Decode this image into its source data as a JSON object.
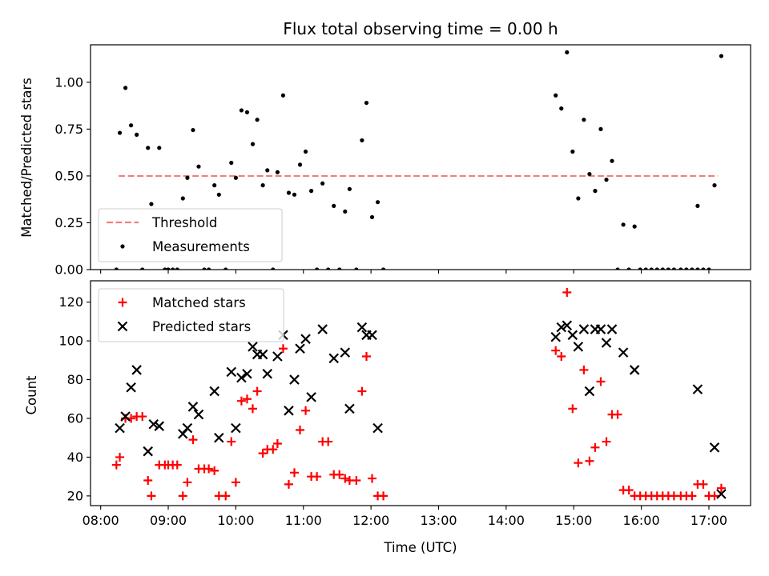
{
  "chart_data": {
    "title": "Flux total observing time = 0.00 h",
    "xlabel": "Time (UTC)",
    "x_ticks": [
      "08:00",
      "09:00",
      "10:00",
      "11:00",
      "12:00",
      "13:00",
      "14:00",
      "15:00",
      "16:00",
      "17:00"
    ],
    "xlim": [
      "07:51",
      "17:37"
    ],
    "panels": [
      {
        "type": "scatter",
        "ylabel": "Matched/Predicted stars",
        "ylim": [
          0,
          1.2
        ],
        "y_ticks": [
          "0.00",
          "0.25",
          "0.50",
          "0.75",
          "1.00"
        ],
        "legend_position": "lower-left",
        "series": [
          {
            "name": "Threshold",
            "kind": "dashed-line",
            "color": "#f08080",
            "x": [
              "08:16",
              "17:08"
            ],
            "y": [
              0.5,
              0.5
            ]
          },
          {
            "name": "Measurements",
            "kind": "dot",
            "color": "#000000",
            "points": [
              [
                "08:14",
                0.0
              ],
              [
                "08:17",
                0.73
              ],
              [
                "08:22",
                0.97
              ],
              [
                "08:27",
                0.77
              ],
              [
                "08:32",
                0.72
              ],
              [
                "08:37",
                0.0
              ],
              [
                "08:42",
                0.65
              ],
              [
                "08:45",
                0.35
              ],
              [
                "08:52",
                0.65
              ],
              [
                "08:57",
                0.0
              ],
              [
                "09:00",
                0.0
              ],
              [
                "09:04",
                0.0
              ],
              [
                "09:08",
                0.0
              ],
              [
                "09:13",
                0.38
              ],
              [
                "09:17",
                0.49
              ],
              [
                "09:22",
                0.745
              ],
              [
                "09:27",
                0.55
              ],
              [
                "09:32",
                0.0
              ],
              [
                "09:36",
                0.0
              ],
              [
                "09:41",
                0.45
              ],
              [
                "09:45",
                0.4
              ],
              [
                "09:51",
                0.0
              ],
              [
                "09:56",
                0.57
              ],
              [
                "10:00",
                0.49
              ],
              [
                "10:05",
                0.85
              ],
              [
                "10:10",
                0.84
              ],
              [
                "10:15",
                0.67
              ],
              [
                "10:19",
                0.8
              ],
              [
                "10:24",
                0.45
              ],
              [
                "10:28",
                0.53
              ],
              [
                "10:33",
                0.0
              ],
              [
                "10:37",
                0.52
              ],
              [
                "10:42",
                0.93
              ],
              [
                "10:47",
                0.41
              ],
              [
                "10:52",
                0.4
              ],
              [
                "10:57",
                0.56
              ],
              [
                "11:02",
                0.63
              ],
              [
                "11:07",
                0.42
              ],
              [
                "11:12",
                0.0
              ],
              [
                "11:17",
                0.46
              ],
              [
                "11:22",
                0.0
              ],
              [
                "11:27",
                0.34
              ],
              [
                "11:32",
                0.0
              ],
              [
                "11:37",
                0.31
              ],
              [
                "11:41",
                0.43
              ],
              [
                "11:47",
                0.0
              ],
              [
                "11:52",
                0.69
              ],
              [
                "11:56",
                0.89
              ],
              [
                "12:01",
                0.28
              ],
              [
                "12:06",
                0.36
              ],
              [
                "12:11",
                0.0
              ],
              [
                "14:44",
                0.93
              ],
              [
                "14:49",
                0.86
              ],
              [
                "14:54",
                1.16
              ],
              [
                "14:59",
                0.63
              ],
              [
                "15:04",
                0.38
              ],
              [
                "15:09",
                0.8
              ],
              [
                "15:14",
                0.51
              ],
              [
                "15:19",
                0.42
              ],
              [
                "15:24",
                0.75
              ],
              [
                "15:29",
                0.48
              ],
              [
                "15:34",
                0.58
              ],
              [
                "15:39",
                0.0
              ],
              [
                "15:44",
                0.24
              ],
              [
                "15:49",
                0.0
              ],
              [
                "15:54",
                0.23
              ],
              [
                "15:59",
                0.0
              ],
              [
                "16:04",
                0.0
              ],
              [
                "16:09",
                0.0
              ],
              [
                "16:14",
                0.0
              ],
              [
                "16:19",
                0.0
              ],
              [
                "16:24",
                0.0
              ],
              [
                "16:29",
                0.0
              ],
              [
                "16:35",
                0.0
              ],
              [
                "16:40",
                0.0
              ],
              [
                "16:45",
                0.0
              ],
              [
                "16:50",
                0.0
              ],
              [
                "16:55",
                0.0
              ],
              [
                "17:00",
                0.0
              ],
              [
                "16:50",
                0.34
              ],
              [
                "17:05",
                0.45
              ],
              [
                "17:11",
                1.14
              ]
            ]
          }
        ]
      },
      {
        "type": "scatter",
        "ylabel": "Count",
        "ylim": [
          15,
          131
        ],
        "y_ticks": [
          "20",
          "40",
          "60",
          "80",
          "100",
          "120"
        ],
        "legend_position": "top-left",
        "series": [
          {
            "name": "Matched stars",
            "marker": "plus",
            "color": "#ff0000",
            "points": [
              [
                "08:14",
                36
              ],
              [
                "08:17",
                40
              ],
              [
                "08:22",
                60
              ],
              [
                "08:27",
                60
              ],
              [
                "08:32",
                61
              ],
              [
                "08:37",
                61
              ],
              [
                "08:42",
                28
              ],
              [
                "08:45",
                20
              ],
              [
                "08:52",
                36
              ],
              [
                "08:57",
                36
              ],
              [
                "09:00",
                36
              ],
              [
                "09:04",
                36
              ],
              [
                "09:08",
                36
              ],
              [
                "09:13",
                20
              ],
              [
                "09:17",
                27
              ],
              [
                "09:22",
                49
              ],
              [
                "09:27",
                34
              ],
              [
                "09:32",
                34
              ],
              [
                "09:36",
                34
              ],
              [
                "09:41",
                33
              ],
              [
                "09:45",
                20
              ],
              [
                "09:51",
                20
              ],
              [
                "09:56",
                48
              ],
              [
                "10:00",
                27
              ],
              [
                "10:05",
                69
              ],
              [
                "10:10",
                70
              ],
              [
                "10:15",
                65
              ],
              [
                "10:19",
                74
              ],
              [
                "10:24",
                42
              ],
              [
                "10:28",
                44
              ],
              [
                "10:33",
                44
              ],
              [
                "10:37",
                47
              ],
              [
                "10:42",
                96
              ],
              [
                "10:47",
                26
              ],
              [
                "10:52",
                32
              ],
              [
                "10:57",
                54
              ],
              [
                "11:02",
                64
              ],
              [
                "11:07",
                30
              ],
              [
                "11:12",
                30
              ],
              [
                "11:17",
                48
              ],
              [
                "11:22",
                48
              ],
              [
                "11:27",
                31
              ],
              [
                "11:32",
                31
              ],
              [
                "11:37",
                29
              ],
              [
                "11:41",
                28
              ],
              [
                "11:47",
                28
              ],
              [
                "11:52",
                74
              ],
              [
                "11:56",
                92
              ],
              [
                "12:01",
                29
              ],
              [
                "12:06",
                20
              ],
              [
                "12:11",
                20
              ],
              [
                "14:44",
                95
              ],
              [
                "14:49",
                92
              ],
              [
                "14:54",
                125
              ],
              [
                "14:59",
                65
              ],
              [
                "15:04",
                37
              ],
              [
                "15:09",
                85
              ],
              [
                "15:14",
                38
              ],
              [
                "15:19",
                45
              ],
              [
                "15:24",
                79
              ],
              [
                "15:29",
                48
              ],
              [
                "15:34",
                62
              ],
              [
                "15:39",
                62
              ],
              [
                "15:44",
                23
              ],
              [
                "15:49",
                23
              ],
              [
                "15:54",
                20
              ],
              [
                "15:59",
                20
              ],
              [
                "16:04",
                20
              ],
              [
                "16:09",
                20
              ],
              [
                "16:14",
                20
              ],
              [
                "16:19",
                20
              ],
              [
                "16:24",
                20
              ],
              [
                "16:29",
                20
              ],
              [
                "16:35",
                20
              ],
              [
                "16:40",
                20
              ],
              [
                "16:45",
                20
              ],
              [
                "16:50",
                26
              ],
              [
                "16:55",
                26
              ],
              [
                "17:00",
                20
              ],
              [
                "17:05",
                20
              ],
              [
                "17:11",
                24
              ]
            ]
          },
          {
            "name": "Predicted stars",
            "marker": "x",
            "color": "#000000",
            "points": [
              [
                "08:17",
                55
              ],
              [
                "08:22",
                61
              ],
              [
                "08:27",
                76
              ],
              [
                "08:32",
                85
              ],
              [
                "08:42",
                43
              ],
              [
                "08:47",
                57
              ],
              [
                "08:52",
                56
              ],
              [
                "09:13",
                52
              ],
              [
                "09:17",
                55
              ],
              [
                "09:22",
                66
              ],
              [
                "09:27",
                62
              ],
              [
                "09:41",
                74
              ],
              [
                "09:45",
                50
              ],
              [
                "09:56",
                84
              ],
              [
                "10:00",
                55
              ],
              [
                "10:05",
                81
              ],
              [
                "10:10",
                83
              ],
              [
                "10:15",
                97
              ],
              [
                "10:19",
                93
              ],
              [
                "10:24",
                93
              ],
              [
                "10:28",
                83
              ],
              [
                "10:37",
                92
              ],
              [
                "10:42",
                103
              ],
              [
                "10:47",
                64
              ],
              [
                "10:52",
                80
              ],
              [
                "10:57",
                96
              ],
              [
                "11:02",
                101
              ],
              [
                "11:07",
                71
              ],
              [
                "11:17",
                106
              ],
              [
                "11:27",
                91
              ],
              [
                "11:37",
                94
              ],
              [
                "11:41",
                65
              ],
              [
                "11:52",
                107
              ],
              [
                "11:56",
                103
              ],
              [
                "12:01",
                103
              ],
              [
                "12:06",
                55
              ],
              [
                "14:44",
                102
              ],
              [
                "14:49",
                107
              ],
              [
                "14:54",
                108
              ],
              [
                "14:59",
                103
              ],
              [
                "15:04",
                97
              ],
              [
                "15:09",
                106
              ],
              [
                "15:14",
                74
              ],
              [
                "15:19",
                106
              ],
              [
                "15:24",
                106
              ],
              [
                "15:29",
                99
              ],
              [
                "15:34",
                106
              ],
              [
                "15:44",
                94
              ],
              [
                "15:54",
                85
              ],
              [
                "16:50",
                75
              ],
              [
                "17:05",
                45
              ],
              [
                "17:11",
                21
              ]
            ]
          }
        ]
      }
    ]
  }
}
